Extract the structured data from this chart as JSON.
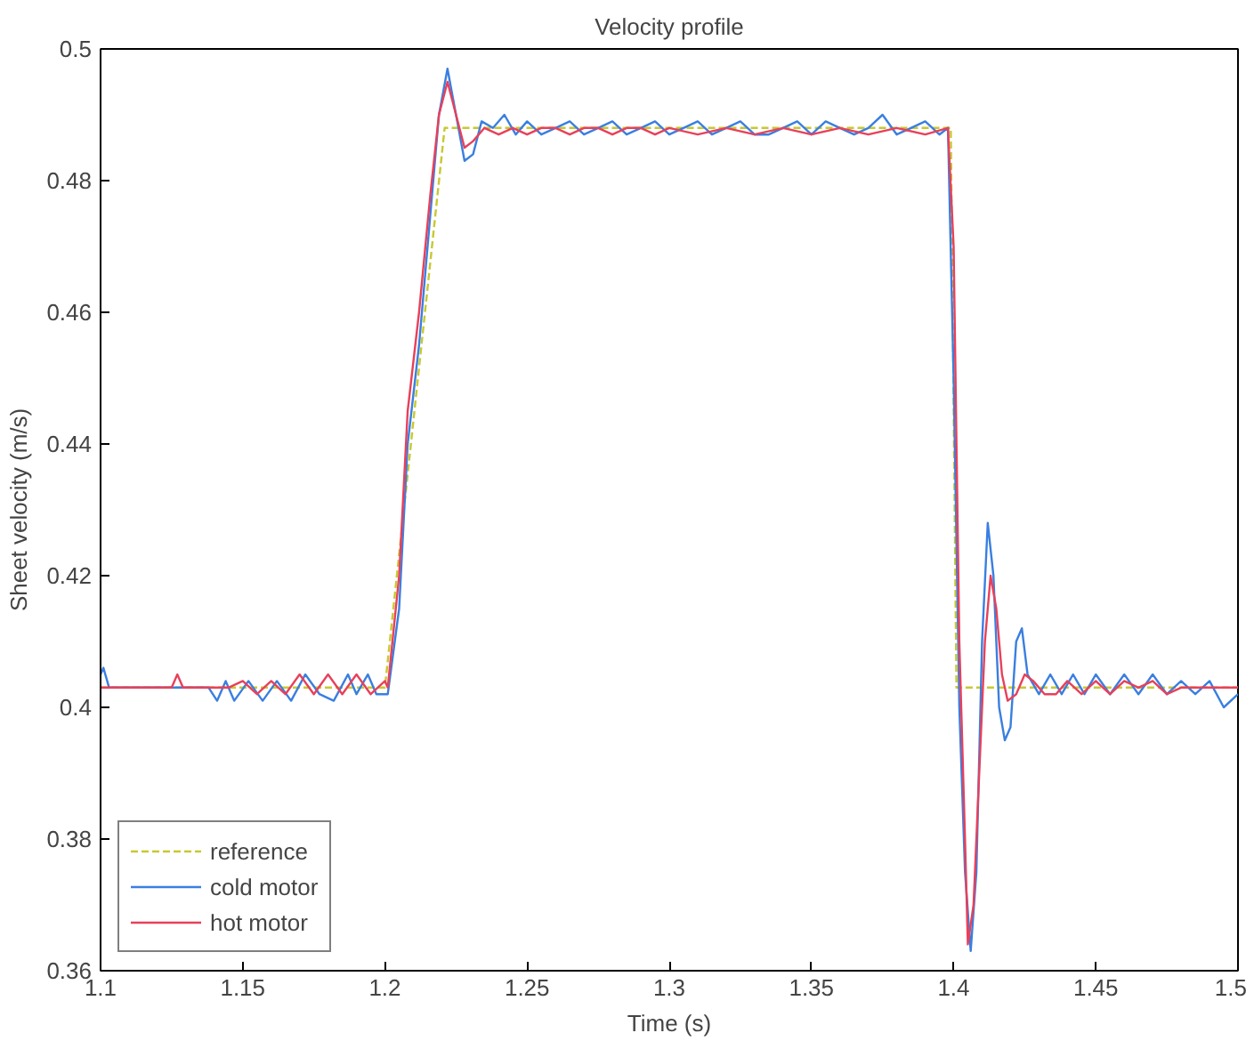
{
  "chart_data": {
    "type": "line",
    "title": "Velocity profile",
    "xlabel": "Time (s)",
    "ylabel": "Sheet velocity (m/s)",
    "xlim": [
      1.1,
      1.5
    ],
    "xticks": [
      1.1,
      1.15,
      1.2,
      1.25,
      1.3,
      1.35,
      1.4,
      1.45,
      1.5
    ],
    "ylim": [
      0.36,
      0.5
    ],
    "yticks": [
      0.36,
      0.38,
      0.4,
      0.42,
      0.44,
      0.46,
      0.48,
      0.5
    ],
    "grid": false,
    "legend": "bottom left",
    "marker": "none",
    "series": [
      {
        "name": "reference",
        "color": "#c8c832",
        "line_style": "dashed",
        "x": [
          1.1,
          1.2,
          1.221,
          1.399,
          1.401,
          1.5
        ],
        "values": [
          0.403,
          0.403,
          0.488,
          0.488,
          0.403,
          0.403
        ]
      },
      {
        "name": "cold motor",
        "color": "#3a7fe0",
        "line_style": "solid",
        "x": [
          1.1,
          1.101,
          1.103,
          1.138,
          1.141,
          1.144,
          1.147,
          1.152,
          1.157,
          1.162,
          1.167,
          1.172,
          1.177,
          1.182,
          1.187,
          1.19,
          1.194,
          1.197,
          1.201,
          1.205,
          1.208,
          1.212,
          1.216,
          1.219,
          1.222,
          1.225,
          1.228,
          1.231,
          1.234,
          1.238,
          1.242,
          1.246,
          1.25,
          1.255,
          1.26,
          1.265,
          1.27,
          1.275,
          1.28,
          1.285,
          1.29,
          1.295,
          1.3,
          1.305,
          1.31,
          1.315,
          1.32,
          1.325,
          1.33,
          1.335,
          1.34,
          1.345,
          1.35,
          1.355,
          1.36,
          1.365,
          1.37,
          1.375,
          1.38,
          1.385,
          1.39,
          1.395,
          1.398,
          1.4,
          1.402,
          1.404,
          1.406,
          1.408,
          1.41,
          1.412,
          1.414,
          1.416,
          1.418,
          1.42,
          1.422,
          1.424,
          1.426,
          1.43,
          1.434,
          1.438,
          1.442,
          1.446,
          1.45,
          1.455,
          1.46,
          1.465,
          1.47,
          1.475,
          1.48,
          1.485,
          1.49,
          1.495,
          1.5
        ],
        "values": [
          0.405,
          0.406,
          0.403,
          0.403,
          0.401,
          0.404,
          0.401,
          0.404,
          0.401,
          0.404,
          0.401,
          0.405,
          0.402,
          0.401,
          0.405,
          0.402,
          0.405,
          0.402,
          0.402,
          0.415,
          0.44,
          0.455,
          0.475,
          0.49,
          0.497,
          0.49,
          0.483,
          0.484,
          0.489,
          0.488,
          0.49,
          0.487,
          0.489,
          0.487,
          0.488,
          0.489,
          0.487,
          0.488,
          0.489,
          0.487,
          0.488,
          0.489,
          0.487,
          0.488,
          0.489,
          0.487,
          0.488,
          0.489,
          0.487,
          0.487,
          0.488,
          0.489,
          0.487,
          0.489,
          0.488,
          0.487,
          0.488,
          0.49,
          0.487,
          0.488,
          0.489,
          0.487,
          0.488,
          0.45,
          0.4,
          0.375,
          0.363,
          0.375,
          0.41,
          0.428,
          0.42,
          0.4,
          0.395,
          0.397,
          0.41,
          0.412,
          0.405,
          0.402,
          0.405,
          0.402,
          0.405,
          0.402,
          0.405,
          0.402,
          0.405,
          0.402,
          0.405,
          0.402,
          0.404,
          0.402,
          0.404,
          0.4,
          0.402
        ]
      },
      {
        "name": "hot motor",
        "color": "#e8405a",
        "line_style": "solid",
        "x": [
          1.1,
          1.125,
          1.127,
          1.129,
          1.14,
          1.145,
          1.15,
          1.155,
          1.16,
          1.165,
          1.17,
          1.175,
          1.18,
          1.185,
          1.19,
          1.195,
          1.2,
          1.201,
          1.205,
          1.208,
          1.212,
          1.216,
          1.219,
          1.222,
          1.225,
          1.228,
          1.231,
          1.235,
          1.24,
          1.245,
          1.25,
          1.255,
          1.26,
          1.265,
          1.27,
          1.275,
          1.28,
          1.285,
          1.29,
          1.295,
          1.3,
          1.31,
          1.32,
          1.33,
          1.34,
          1.35,
          1.36,
          1.37,
          1.38,
          1.39,
          1.398,
          1.4,
          1.402,
          1.404,
          1.405,
          1.407,
          1.409,
          1.411,
          1.413,
          1.415,
          1.417,
          1.419,
          1.422,
          1.425,
          1.428,
          1.432,
          1.436,
          1.44,
          1.445,
          1.45,
          1.455,
          1.46,
          1.465,
          1.47,
          1.475,
          1.48,
          1.49,
          1.5
        ],
        "values": [
          0.403,
          0.403,
          0.405,
          0.403,
          0.403,
          0.403,
          0.404,
          0.402,
          0.404,
          0.402,
          0.405,
          0.402,
          0.405,
          0.402,
          0.405,
          0.402,
          0.404,
          0.403,
          0.42,
          0.445,
          0.46,
          0.478,
          0.49,
          0.495,
          0.49,
          0.485,
          0.486,
          0.488,
          0.487,
          0.488,
          0.487,
          0.488,
          0.488,
          0.487,
          0.488,
          0.488,
          0.487,
          0.488,
          0.488,
          0.487,
          0.488,
          0.487,
          0.488,
          0.487,
          0.488,
          0.487,
          0.488,
          0.487,
          0.488,
          0.487,
          0.488,
          0.47,
          0.41,
          0.38,
          0.364,
          0.37,
          0.39,
          0.41,
          0.42,
          0.415,
          0.405,
          0.401,
          0.402,
          0.405,
          0.404,
          0.402,
          0.402,
          0.404,
          0.402,
          0.404,
          0.402,
          0.404,
          0.403,
          0.404,
          0.402,
          0.403,
          0.403,
          0.403
        ]
      }
    ]
  }
}
